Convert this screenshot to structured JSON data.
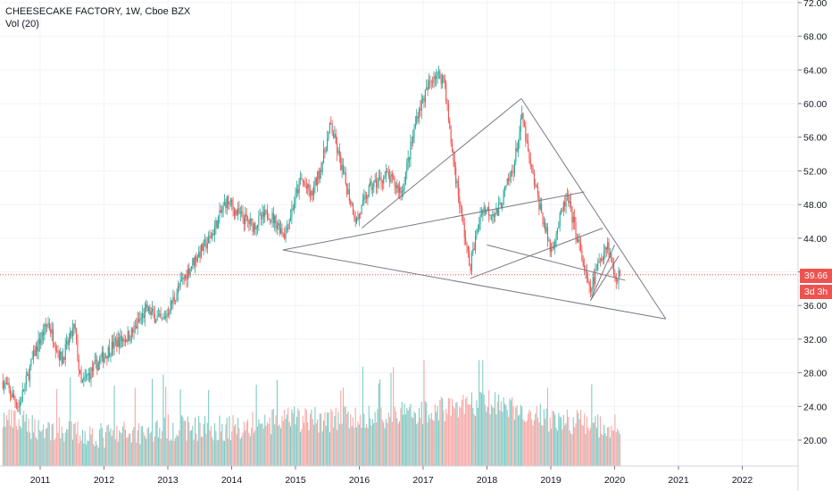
{
  "header": {
    "symbol_line": "CHEESECAKE FACTORY, 1W, Cboe BZX",
    "indicator_line": "Vol (20)"
  },
  "price_axis": {
    "last_price_label": "39.66",
    "countdown_label": "3d 3h"
  },
  "colors": {
    "up": "#26a69a",
    "down": "#ef5350",
    "up_volume": "#80cbc4",
    "down_volume": "#f7a9a7",
    "drawing": "#787b86",
    "grid": "#f0f3fa",
    "last_price_line": "#ef5350"
  },
  "chart_data": {
    "type": "candlestick",
    "title": "CHEESECAKE FACTORY, 1W, Cboe BZX",
    "indicator": "Vol (20)",
    "x_axis": {
      "type": "date",
      "tick_labels": [
        "2011",
        "2012",
        "2013",
        "2014",
        "2015",
        "2016",
        "2017",
        "2018",
        "2019",
        "2020",
        "2021",
        "2022"
      ],
      "range": [
        "2010-06-01",
        "2022-10-01"
      ]
    },
    "y_axis": {
      "side": "right",
      "tick_labels": [
        "20.00",
        "24.00",
        "28.00",
        "32.00",
        "36.00",
        "40.00",
        "44.00",
        "48.00",
        "52.00",
        "56.00",
        "60.00",
        "64.00",
        "68.00",
        "72.00"
      ],
      "ticks": [
        20,
        24,
        28,
        32,
        36,
        40,
        44,
        48,
        52,
        56,
        60,
        64,
        68,
        72
      ],
      "range": [
        17.0,
        73.5
      ]
    },
    "grid": true,
    "last_price": 39.66,
    "price_path": [
      [
        "2010-06-01",
        27.0
      ],
      [
        "2010-09-01",
        24.0
      ],
      [
        "2010-12-01",
        30.5
      ],
      [
        "2011-02-15",
        34.0
      ],
      [
        "2011-05-01",
        29.5
      ],
      [
        "2011-07-15",
        33.5
      ],
      [
        "2011-08-20",
        26.5
      ],
      [
        "2011-11-01",
        28.5
      ],
      [
        "2012-03-01",
        31.5
      ],
      [
        "2012-06-01",
        32.5
      ],
      [
        "2012-09-01",
        35.5
      ],
      [
        "2012-12-01",
        34.0
      ],
      [
        "2013-03-01",
        38.0
      ],
      [
        "2013-06-01",
        41.5
      ],
      [
        "2013-09-01",
        44.0
      ],
      [
        "2013-12-01",
        48.5
      ],
      [
        "2014-02-01",
        47.0
      ],
      [
        "2014-05-01",
        45.5
      ],
      [
        "2014-08-01",
        47.0
      ],
      [
        "2014-11-01",
        44.5
      ],
      [
        "2015-02-01",
        51.0
      ],
      [
        "2015-04-01",
        49.0
      ],
      [
        "2015-06-01",
        53.0
      ],
      [
        "2015-07-20",
        57.5
      ],
      [
        "2015-10-01",
        51.5
      ],
      [
        "2015-12-15",
        46.0
      ],
      [
        "2016-03-01",
        50.0
      ],
      [
        "2016-06-01",
        51.5
      ],
      [
        "2016-09-01",
        49.5
      ],
      [
        "2016-12-01",
        59.0
      ],
      [
        "2017-03-01",
        63.5
      ],
      [
        "2017-05-01",
        63.0
      ],
      [
        "2017-06-01",
        56.5
      ],
      [
        "2017-08-01",
        47.5
      ],
      [
        "2017-09-25",
        40.5
      ],
      [
        "2017-12-01",
        47.5
      ],
      [
        "2018-03-01",
        47.0
      ],
      [
        "2018-06-01",
        52.5
      ],
      [
        "2018-07-20",
        58.5
      ],
      [
        "2018-09-01",
        53.0
      ],
      [
        "2018-12-01",
        45.0
      ],
      [
        "2019-01-01",
        42.5
      ],
      [
        "2019-04-01",
        49.0
      ],
      [
        "2019-06-01",
        44.0
      ],
      [
        "2019-08-10",
        37.5
      ],
      [
        "2019-10-10",
        41.5
      ],
      [
        "2019-11-20",
        43.5
      ],
      [
        "2020-01-01",
        39.5
      ],
      [
        "2020-02-05",
        39.66
      ]
    ],
    "volume_path": [
      [
        "2010-06-01",
        22
      ],
      [
        "2011-01-01",
        21
      ],
      [
        "2012-01-01",
        20
      ],
      [
        "2013-01-01",
        21
      ],
      [
        "2014-01-01",
        21
      ],
      [
        "2015-01-01",
        22
      ],
      [
        "2016-01-01",
        22
      ],
      [
        "2017-01-01",
        23
      ],
      [
        "2018-01-01",
        24
      ],
      [
        "2019-01-01",
        22
      ],
      [
        "2020-02-05",
        21
      ]
    ],
    "trendlines": [
      {
        "from": [
          "2014-10-20",
          42.6
        ],
        "to": [
          "2020-10-20",
          34.4
        ]
      },
      {
        "from": [
          "2014-10-20",
          42.6
        ],
        "to": [
          "2019-07-10",
          49.5
        ]
      },
      {
        "from": [
          "2016-01-15",
          45.2
        ],
        "to": [
          "2018-07-15",
          60.6
        ]
      },
      {
        "from": [
          "2018-07-15",
          60.6
        ],
        "to": [
          "2020-10-20",
          34.4
        ]
      },
      {
        "from": [
          "2017-09-25",
          39.2
        ],
        "to": [
          "2019-10-25",
          45.2
        ]
      },
      {
        "from": [
          "2018-01-01",
          43.2
        ],
        "to": [
          "2020-03-01",
          39.0
        ]
      },
      {
        "from": [
          "2019-08-15",
          36.6
        ],
        "to": [
          "2020-01-01",
          43.2
        ]
      },
      {
        "from": [
          "2019-08-15",
          36.6
        ],
        "to": [
          "2020-01-25",
          41.9
        ]
      }
    ]
  }
}
